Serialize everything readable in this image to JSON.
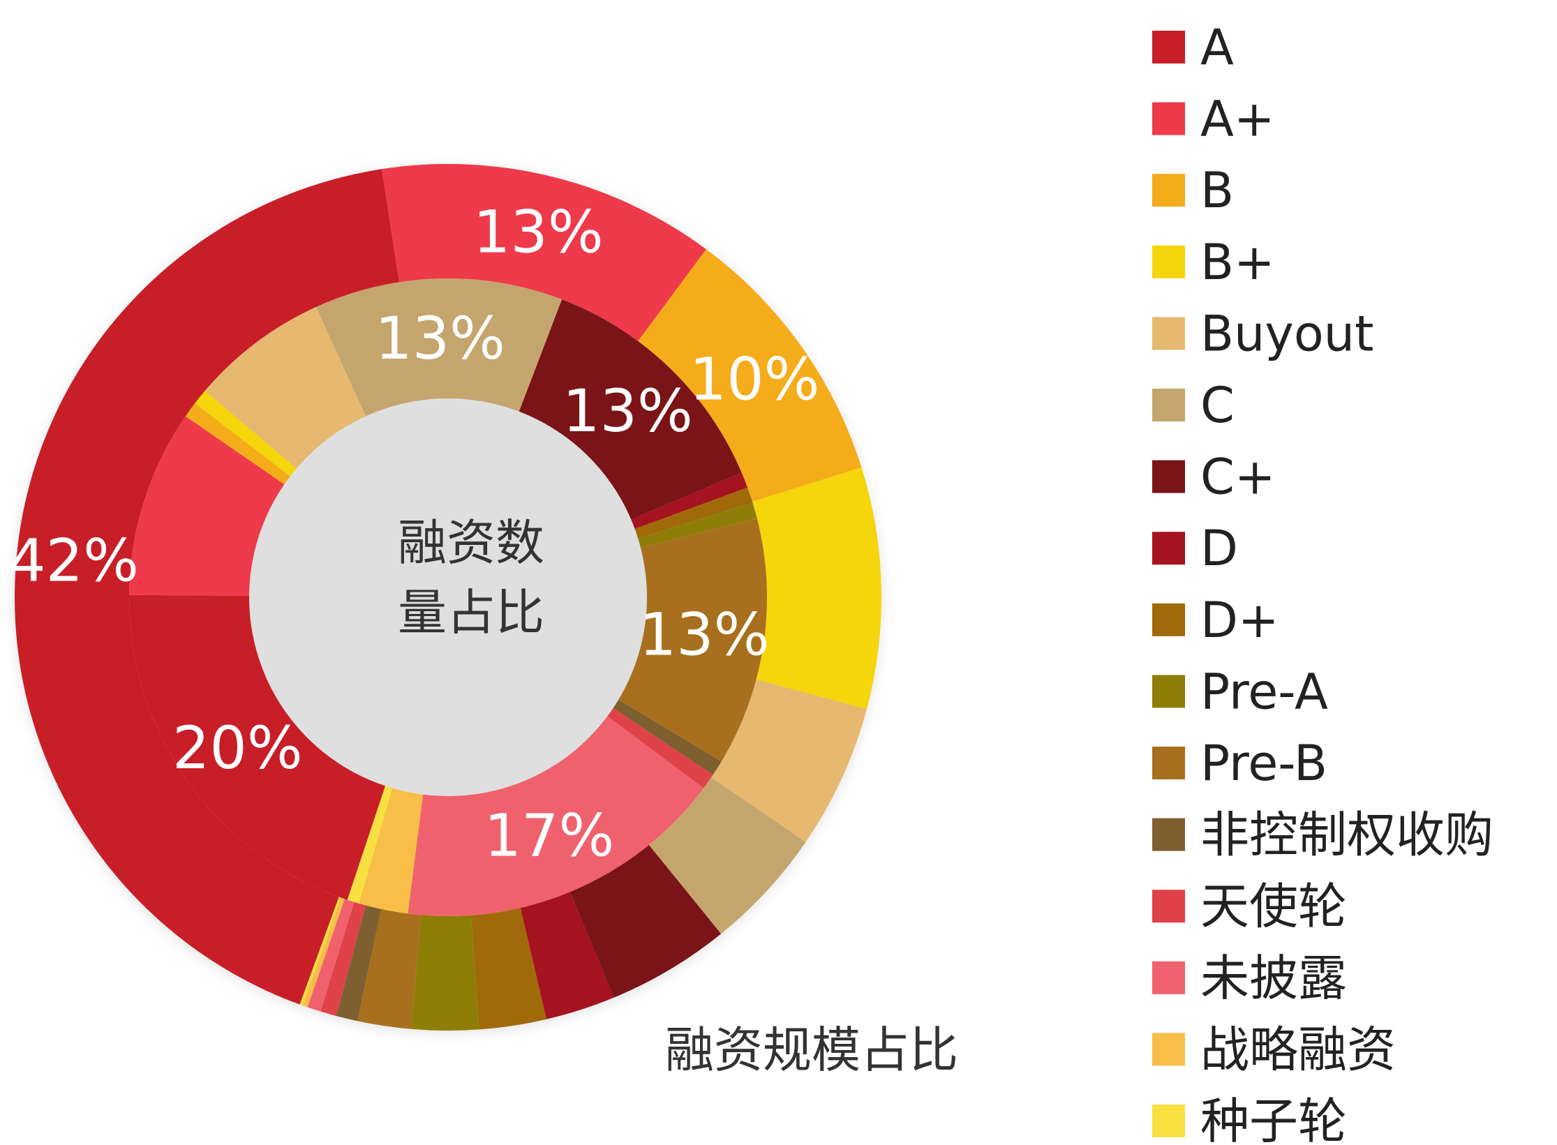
{
  "chart_data": {
    "type": "donut",
    "categories": [
      "A",
      "A+",
      "B",
      "B+",
      "Buyout",
      "C",
      "C+",
      "D",
      "D+",
      "Pre-A",
      "Pre-B",
      "非控制权收购",
      "天使轮",
      "未披露",
      "战略融资",
      "种子轮"
    ],
    "colors": [
      "#c81e28",
      "#ee3a4a",
      "#f5ac1a",
      "#f5d50c",
      "#e6b870",
      "#c5a56e",
      "#7b1418",
      "#a51220",
      "#a06a0a",
      "#8e7e08",
      "#a8701e",
      "#7e6030",
      "#e0424a",
      "#f0616e",
      "#f8be48",
      "#f8e040"
    ],
    "series": [
      {
        "name": "融资规模占比",
        "ring": "outer",
        "values": [
          42,
          12.6,
          10,
          9,
          5.4,
          4.6,
          4.6,
          2.6,
          2.5,
          2.5,
          2,
          0.8,
          0.6,
          0.5,
          0.2,
          0.1
        ],
        "value_labels": [
          "42%",
          "13%",
          "10%",
          null,
          null,
          null,
          null,
          null,
          null,
          null,
          null,
          null,
          null,
          null,
          null,
          null
        ]
      },
      {
        "name": "融资数量占比",
        "ring": "inner",
        "values": [
          20,
          9.5,
          0.8,
          0.8,
          7,
          12.6,
          12.8,
          0.8,
          0.8,
          0.8,
          12.6,
          0.8,
          0.8,
          16.8,
          2.5,
          0.6
        ],
        "value_labels": [
          "20%",
          null,
          null,
          null,
          null,
          "13%",
          "13%",
          null,
          null,
          null,
          "13%",
          null,
          null,
          "17%",
          null,
          null
        ]
      }
    ]
  }
}
